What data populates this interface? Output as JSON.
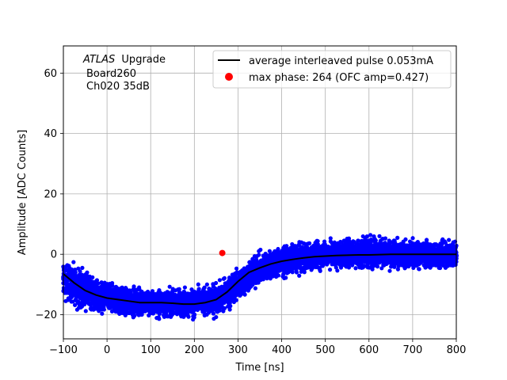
{
  "chart_data": {
    "type": "scatter",
    "xlabel": "Time [ns]",
    "ylabel": "Amplitude [ADC Counts]",
    "xlim": [
      -100,
      800
    ],
    "ylim": [
      -28,
      69
    ],
    "xticks": [
      -100,
      0,
      100,
      200,
      300,
      400,
      500,
      600,
      700,
      800
    ],
    "yticks": [
      -20,
      0,
      20,
      40,
      60
    ],
    "grid": true,
    "annotation": {
      "experiment": "ATLAS",
      "experiment_suffix": "Upgrade",
      "board": "Board260",
      "channel": "Ch020 35dB"
    },
    "legend": {
      "placement": "top-right",
      "entries": [
        "average interleaved pulse 0.053mA",
        "max phase: 264 (OFC amp=0.427)"
      ]
    },
    "colors": {
      "scatter": "#0000ff",
      "average": "#000000",
      "max_phase": "#ff0000"
    },
    "series": [
      {
        "name": "average interleaved pulse 0.053mA",
        "kind": "line",
        "x": [
          -100,
          -75,
          -50,
          -25,
          0,
          25,
          50,
          75,
          100,
          125,
          150,
          175,
          200,
          225,
          250,
          275,
          300,
          325,
          350,
          375,
          400,
          425,
          450,
          475,
          500,
          525,
          550,
          575,
          600,
          625,
          650,
          675,
          700,
          725,
          750,
          775,
          800
        ],
        "y": [
          -6.5,
          -9.5,
          -12,
          -13.5,
          -14.5,
          -15,
          -15.5,
          -16,
          -16,
          -16,
          -16.2,
          -16.5,
          -16.5,
          -16,
          -15,
          -12.5,
          -9,
          -6,
          -4.5,
          -3.2,
          -2.3,
          -1.7,
          -1.2,
          -0.8,
          -0.6,
          -0.4,
          -0.3,
          -0.2,
          -0.2,
          -0.1,
          0,
          0,
          0,
          0,
          0,
          0,
          0
        ]
      },
      {
        "name": "max phase: 264 (OFC amp=0.427)",
        "kind": "point",
        "x": [
          264
        ],
        "y": [
          0.427
        ]
      }
    ],
    "scatter_band": {
      "x": [
        -100,
        -75,
        -50,
        -25,
        0,
        25,
        50,
        75,
        100,
        125,
        150,
        175,
        200,
        225,
        250,
        275,
        300,
        325,
        350,
        375,
        400,
        425,
        450,
        475,
        500,
        525,
        550,
        575,
        600,
        625,
        650,
        675,
        700,
        725,
        750,
        775,
        800
      ],
      "ymin": [
        -17,
        -19,
        -20,
        -21,
        -21,
        -22,
        -22,
        -22,
        -22,
        -22,
        -22,
        -23,
        -22,
        -22,
        -22,
        -20,
        -17,
        -14,
        -12,
        -10,
        -9,
        -8,
        -7,
        -7,
        -6,
        -6,
        -6,
        -6,
        -6,
        -6,
        -6,
        -6,
        -6,
        -6,
        -6,
        -6,
        -6
      ],
      "ymax": [
        0,
        -2,
        -4,
        -6,
        -8,
        -9,
        -9,
        -10,
        -10,
        -11,
        -10,
        -10,
        -10,
        -9,
        -8,
        -6,
        -3,
        0,
        2,
        3,
        4,
        5,
        5,
        6,
        6,
        6,
        7,
        7,
        8,
        7,
        6,
        6,
        6,
        6,
        6,
        6,
        6
      ]
    }
  }
}
